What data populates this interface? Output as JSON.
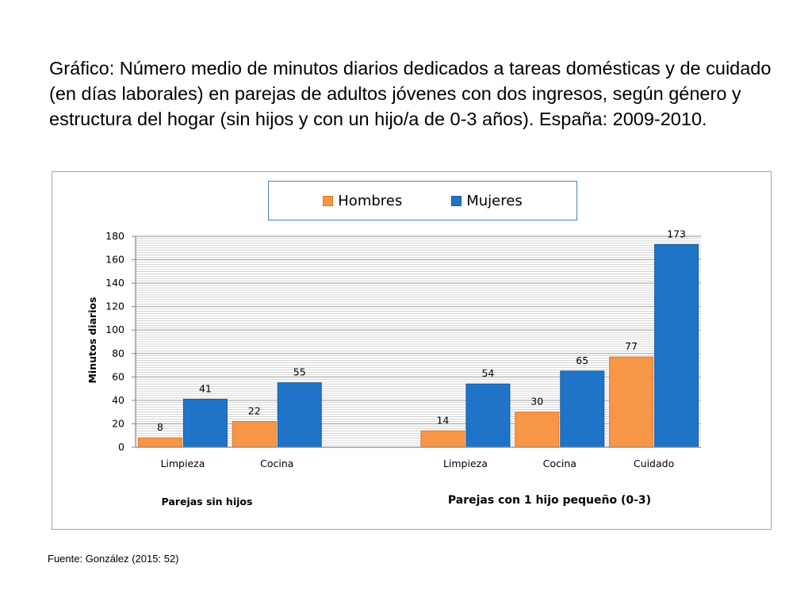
{
  "title": "Gráfico: Número medio de minutos diarios dedicados a tareas domésticas y de cuidado (en días laborales) en parejas de adultos jóvenes con dos ingresos, según género y estructura del hogar (sin hijos y con un hijo/a de 0-3 años). España: 2009-2010.",
  "source": "Fuente: González (2015: 52)",
  "chart_data": {
    "type": "bar",
    "title": "",
    "xlabel": "",
    "ylabel": "Minutos diarios",
    "ylim": [
      0,
      180
    ],
    "yticks": [
      0,
      20,
      40,
      60,
      80,
      100,
      120,
      140,
      160,
      180
    ],
    "grid": true,
    "legend_position": "top",
    "groups": [
      {
        "label": "Parejas sin hijos",
        "categories": [
          "Limpieza",
          "Cocina"
        ]
      },
      {
        "label": "Parejas con 1 hijo pequeño (0-3)",
        "categories": [
          "Limpieza",
          "Cocina",
          "Cuidado"
        ]
      }
    ],
    "categories": [
      "Limpieza",
      "Cocina",
      "Limpieza",
      "Cocina",
      "Cuidado"
    ],
    "series": [
      {
        "name": "Hombres",
        "color": "#f79646",
        "values": [
          8,
          22,
          14,
          30,
          77
        ]
      },
      {
        "name": "Mujeres",
        "color": "#1f74c8",
        "values": [
          41,
          55,
          54,
          65,
          173
        ]
      }
    ]
  }
}
